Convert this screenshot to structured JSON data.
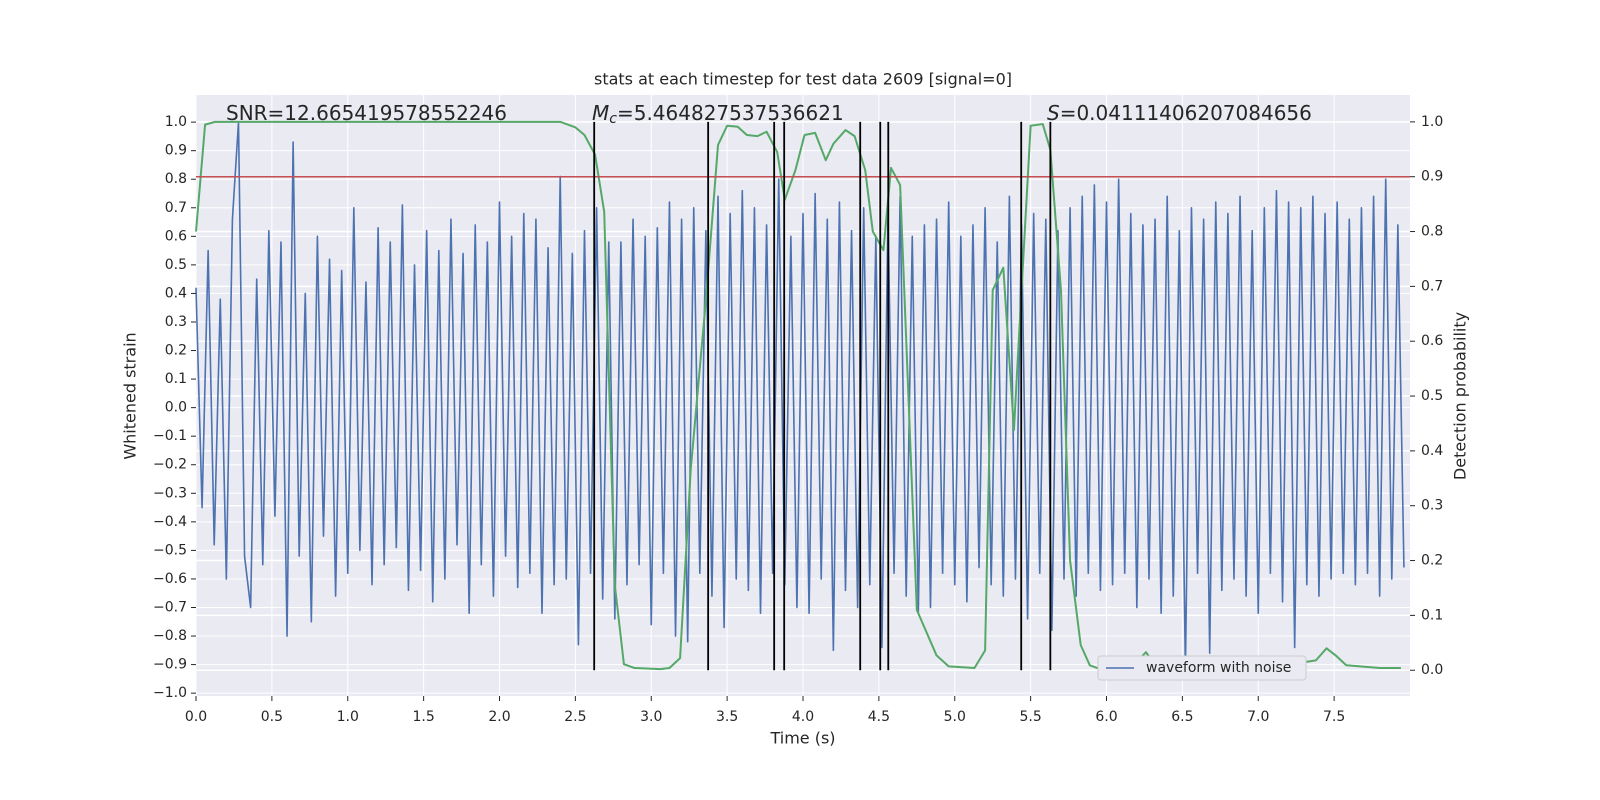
{
  "chart_data": {
    "type": "line",
    "title": "stats at each timestep for test data 2609 [signal=0]",
    "x_label": "Time (s)",
    "y_label": "Whitened strain",
    "y2_label": "Detection probability",
    "background": "#eaeaf2",
    "grid": true,
    "legend": "lower right",
    "annotations": [
      {
        "text": "SNR=12.665419578552246"
      },
      {
        "symbol": "M",
        "subscript": "c",
        "text": "=5.464827537536621"
      },
      {
        "symbol": "S",
        "text": "=0.04111406207084656"
      }
    ],
    "xlim": [
      0,
      8.0
    ],
    "ylim": [
      -1.01,
      1.095
    ],
    "y2lim": [
      -0.047,
      1.049
    ],
    "xticks": [
      {
        "value": 0,
        "label": "0.0"
      },
      0.5,
      {
        "value": 1,
        "label": "1.0"
      },
      1.5,
      {
        "value": 2,
        "label": "2.0"
      },
      2.5,
      {
        "value": 3,
        "label": "3.0"
      },
      3.5,
      {
        "value": 4,
        "label": "4.0"
      },
      4.5,
      {
        "value": 5,
        "label": "5.0"
      },
      5.5,
      {
        "value": 6,
        "label": "6.0"
      },
      6.5,
      {
        "value": 7,
        "label": "7.0"
      },
      7.5
    ],
    "yticks": [
      {
        "value": -1,
        "label": "−1.0"
      },
      {
        "value": -0.9,
        "label": "−0.9"
      },
      {
        "value": -0.8,
        "label": "−0.8"
      },
      {
        "value": -0.7,
        "label": "−0.7"
      },
      {
        "value": -0.6,
        "label": "−0.6"
      },
      {
        "value": -0.5,
        "label": "−0.5"
      },
      {
        "value": -0.4,
        "label": "−0.4"
      },
      {
        "value": -0.3,
        "label": "−0.3"
      },
      {
        "value": -0.2,
        "label": "−0.2"
      },
      {
        "value": -0.1,
        "label": "−0.1"
      },
      {
        "value": 0,
        "label": "0.0"
      },
      0.1,
      0.2,
      0.3,
      0.4,
      0.5,
      0.6,
      0.7,
      0.8,
      0.9,
      {
        "value": 1,
        "label": "1.0"
      }
    ],
    "y2ticks": [
      {
        "value": 0,
        "label": "0.0"
      },
      0.1,
      0.2,
      0.3,
      0.4,
      0.5,
      0.6,
      0.7,
      0.8,
      0.9,
      {
        "value": 1,
        "label": "1.0"
      }
    ],
    "series": [
      {
        "name": "waveform with noise",
        "color": "#4c72b0",
        "x": [
          0.0,
          0.04,
          0.08,
          0.12,
          0.16,
          0.2,
          0.24,
          0.28,
          0.32,
          0.36,
          0.4,
          0.44,
          0.48,
          0.52,
          0.56,
          0.6,
          0.64,
          0.68,
          0.72,
          0.76,
          0.8,
          0.84,
          0.88,
          0.92,
          0.96,
          1.0,
          1.04,
          1.08,
          1.12,
          1.16,
          1.2,
          1.24,
          1.28,
          1.32,
          1.36,
          1.4,
          1.44,
          1.48,
          1.52,
          1.56,
          1.6,
          1.64,
          1.68,
          1.72,
          1.76,
          1.8,
          1.84,
          1.88,
          1.92,
          1.96,
          2.0,
          2.04,
          2.08,
          2.12,
          2.16,
          2.2,
          2.24,
          2.28,
          2.32,
          2.36,
          2.4,
          2.44,
          2.48,
          2.52,
          2.56,
          2.6,
          2.64,
          2.68,
          2.72,
          2.76,
          2.8,
          2.84,
          2.88,
          2.92,
          2.96,
          3.0,
          3.04,
          3.08,
          3.12,
          3.16,
          3.2,
          3.24,
          3.28,
          3.32,
          3.36,
          3.4,
          3.44,
          3.48,
          3.52,
          3.56,
          3.6,
          3.64,
          3.68,
          3.72,
          3.76,
          3.8,
          3.84,
          3.88,
          3.92,
          3.96,
          4.0,
          4.04,
          4.08,
          4.12,
          4.16,
          4.2,
          4.24,
          4.28,
          4.32,
          4.36,
          4.4,
          4.44,
          4.48,
          4.52,
          4.56,
          4.6,
          4.64,
          4.68,
          4.72,
          4.76,
          4.8,
          4.84,
          4.88,
          4.92,
          4.96,
          5.0,
          5.04,
          5.08,
          5.12,
          5.16,
          5.2,
          5.24,
          5.28,
          5.32,
          5.36,
          5.4,
          5.44,
          5.48,
          5.52,
          5.56,
          5.6,
          5.64,
          5.68,
          5.72,
          5.76,
          5.8,
          5.84,
          5.88,
          5.92,
          5.96,
          6.0,
          6.04,
          6.08,
          6.12,
          6.16,
          6.2,
          6.24,
          6.28,
          6.32,
          6.36,
          6.4,
          6.44,
          6.48,
          6.52,
          6.56,
          6.6,
          6.64,
          6.68,
          6.72,
          6.76,
          6.8,
          6.84,
          6.88,
          6.92,
          6.96,
          7.0,
          7.04,
          7.08,
          7.12,
          7.16,
          7.2,
          7.24,
          7.28,
          7.32,
          7.36,
          7.4,
          7.44,
          7.48,
          7.52,
          7.56,
          7.6,
          7.64,
          7.68,
          7.72,
          7.76,
          7.8,
          7.84,
          7.88,
          7.92,
          7.96
        ],
        "values": [
          0.42,
          -0.35,
          0.55,
          -0.48,
          0.38,
          -0.6,
          0.66,
          1.0,
          -0.52,
          -0.7,
          0.45,
          -0.55,
          0.62,
          -0.38,
          0.58,
          -0.8,
          0.93,
          -0.52,
          0.4,
          -0.75,
          0.6,
          -0.45,
          0.52,
          -0.66,
          0.48,
          -0.58,
          0.7,
          -0.5,
          0.44,
          -0.62,
          0.63,
          -0.55,
          0.58,
          -0.49,
          0.71,
          -0.64,
          0.5,
          -0.57,
          0.62,
          -0.68,
          0.55,
          -0.6,
          0.66,
          -0.48,
          0.54,
          -0.72,
          0.64,
          -0.55,
          0.58,
          -0.66,
          0.72,
          -0.52,
          0.6,
          -0.63,
          0.68,
          -0.58,
          0.66,
          -0.72,
          0.56,
          -0.62,
          0.81,
          -0.6,
          0.54,
          -0.83,
          0.62,
          -0.58,
          0.7,
          -0.67,
          0.58,
          -0.74,
          0.58,
          -0.62,
          0.66,
          -0.55,
          0.6,
          -0.76,
          0.63,
          -0.58,
          0.72,
          -0.8,
          0.66,
          -0.82,
          0.7,
          -0.58,
          0.62,
          -0.66,
          0.74,
          -0.77,
          0.68,
          -0.6,
          0.76,
          -0.64,
          0.7,
          -0.72,
          0.64,
          -0.58,
          0.8,
          -0.62,
          0.6,
          -0.7,
          0.68,
          -0.72,
          0.75,
          -0.6,
          0.66,
          -0.85,
          0.72,
          -0.64,
          0.62,
          -0.7,
          0.7,
          -0.62,
          0.6,
          -0.84,
          0.68,
          -0.58,
          0.74,
          -0.66,
          0.6,
          -0.72,
          0.64,
          -0.7,
          0.66,
          -0.58,
          0.72,
          -0.62,
          0.6,
          -0.68,
          0.64,
          -0.56,
          0.7,
          -0.62,
          0.58,
          -0.66,
          0.74,
          -0.6,
          0.64,
          -0.74,
          0.68,
          -0.58,
          0.66,
          -0.78,
          0.62,
          -0.6,
          0.7,
          -0.66,
          0.74,
          -0.58,
          0.78,
          -0.64,
          0.72,
          -0.62,
          0.8,
          -0.58,
          0.68,
          -0.7,
          0.64,
          -0.6,
          0.66,
          -0.72,
          0.74,
          -0.66,
          0.62,
          -0.92,
          0.7,
          -0.58,
          0.66,
          -0.86,
          0.72,
          -0.64,
          0.68,
          -0.6,
          0.74,
          -0.66,
          0.62,
          -0.72,
          0.7,
          -0.58,
          0.76,
          -0.68,
          0.72,
          -0.84,
          0.7,
          -0.62,
          0.74,
          -0.66,
          0.68,
          -0.6,
          0.72,
          -0.58,
          0.66,
          -0.62,
          0.7,
          -0.58,
          0.74,
          -0.66,
          0.8,
          -0.6,
          0.64,
          -0.56
        ]
      },
      {
        "color": "#55a868",
        "axis": "y2",
        "x": [
          0,
          0.06,
          0.125,
          2.4,
          2.5,
          2.56,
          2.63,
          2.69,
          2.76,
          2.82,
          2.89,
          3.06,
          3.12,
          3.19,
          3.26,
          3.36,
          3.44,
          3.5,
          3.57,
          3.63,
          3.7,
          3.76,
          3.83,
          3.88,
          3.95,
          4.01,
          4.08,
          4.15,
          4.2,
          4.28,
          4.34,
          4.41,
          4.46,
          4.53,
          4.58,
          4.64,
          4.75,
          4.88,
          4.96,
          5.13,
          5.2,
          5.25,
          5.32,
          5.39,
          5.44,
          5.5,
          5.58,
          5.63,
          5.7,
          5.76,
          5.83,
          5.89,
          5.96,
          6.16,
          6.2,
          6.26,
          6.32,
          6.39,
          6.62,
          6.75,
          7.01,
          7.21,
          7.31,
          7.38,
          7.45,
          7.51,
          7.58,
          7.8,
          7.94
        ],
        "values": [
          0.8,
          0.995,
          1.0,
          1.0,
          0.99,
          0.976,
          0.94,
          0.836,
          0.155,
          0.011,
          0.004,
          0.002,
          0.004,
          0.022,
          0.365,
          0.675,
          0.958,
          0.993,
          0.991,
          0.976,
          0.974,
          0.982,
          0.945,
          0.858,
          0.912,
          0.976,
          0.98,
          0.93,
          0.96,
          0.985,
          0.974,
          0.912,
          0.8,
          0.766,
          0.916,
          0.885,
          0.11,
          0.027,
          0.007,
          0.004,
          0.036,
          0.693,
          0.734,
          0.438,
          0.693,
          0.993,
          0.996,
          0.949,
          0.693,
          0.2,
          0.046,
          0.009,
          0.002,
          0.005,
          0.015,
          0.033,
          0.009,
          0.004,
          0.004,
          0.002,
          0.005,
          0.007,
          0.015,
          0.018,
          0.04,
          0.027,
          0.009,
          0.004,
          0.004
        ]
      }
    ],
    "hlines": [
      {
        "value": 0.9,
        "axis": "y2",
        "color": "#c44e52"
      }
    ],
    "vlines": {
      "x": [
        2.624,
        3.375,
        3.81,
        3.876,
        4.377,
        4.509,
        4.562,
        5.438,
        5.63
      ],
      "ymin": 0,
      "ymax": 1,
      "axis": "y2",
      "color": "#000000"
    }
  }
}
